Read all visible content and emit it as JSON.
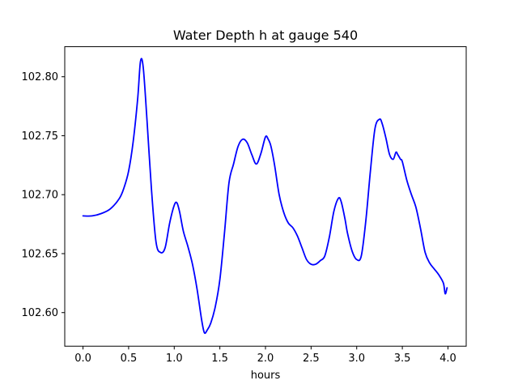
{
  "chart_data": {
    "type": "line",
    "title": "Water Depth h at gauge 540",
    "xlabel": "hours",
    "ylabel": "",
    "xlim": [
      -0.2,
      4.2
    ],
    "ylim": [
      102.5715,
      102.8255
    ],
    "xticks": [
      0.0,
      0.5,
      1.0,
      1.5,
      2.0,
      2.5,
      3.0,
      3.5,
      4.0
    ],
    "xtick_labels": [
      "0.0",
      "0.5",
      "1.0",
      "1.5",
      "2.0",
      "2.5",
      "3.0",
      "3.5",
      "4.0"
    ],
    "yticks": [
      102.6,
      102.65,
      102.7,
      102.75,
      102.8
    ],
    "ytick_labels": [
      "102.60",
      "102.65",
      "102.70",
      "102.75",
      "102.80"
    ],
    "grid": false,
    "series": [
      {
        "color": "#0000ff",
        "x": [
          0.0,
          0.1,
          0.2,
          0.3,
          0.4,
          0.45,
          0.5,
          0.55,
          0.6,
          0.63,
          0.66,
          0.7,
          0.75,
          0.8,
          0.85,
          0.9,
          0.95,
          1.0,
          1.03,
          1.06,
          1.1,
          1.15,
          1.2,
          1.25,
          1.3,
          1.33,
          1.36,
          1.4,
          1.45,
          1.5,
          1.55,
          1.6,
          1.65,
          1.7,
          1.75,
          1.8,
          1.85,
          1.9,
          1.95,
          2.0,
          2.03,
          2.06,
          2.1,
          2.15,
          2.2,
          2.25,
          2.3,
          2.35,
          2.4,
          2.45,
          2.5,
          2.55,
          2.6,
          2.65,
          2.7,
          2.75,
          2.8,
          2.83,
          2.87,
          2.9,
          2.95,
          3.0,
          3.05,
          3.1,
          3.15,
          3.2,
          3.25,
          3.28,
          3.32,
          3.36,
          3.4,
          3.43,
          3.45,
          3.48,
          3.5,
          3.55,
          3.6,
          3.65,
          3.7,
          3.75,
          3.8,
          3.85,
          3.9,
          3.95,
          3.97,
          3.99
        ],
        "y": [
          102.682,
          102.682,
          102.684,
          102.688,
          102.697,
          102.706,
          102.72,
          102.745,
          102.782,
          102.813,
          102.808,
          102.765,
          102.705,
          102.66,
          102.651,
          102.655,
          102.676,
          102.691,
          102.693,
          102.685,
          102.669,
          102.656,
          102.641,
          102.62,
          102.594,
          102.583,
          102.585,
          102.591,
          102.605,
          102.628,
          102.667,
          102.71,
          102.726,
          102.741,
          102.747,
          102.744,
          102.734,
          102.726,
          102.735,
          102.749,
          102.747,
          102.741,
          102.725,
          102.7,
          102.685,
          102.676,
          102.672,
          102.665,
          102.655,
          102.645,
          102.641,
          102.641,
          102.644,
          102.648,
          102.664,
          102.686,
          102.697,
          102.694,
          102.68,
          102.667,
          102.652,
          102.645,
          102.648,
          102.678,
          102.72,
          102.756,
          102.764,
          102.76,
          102.748,
          102.734,
          102.73,
          102.736,
          102.734,
          102.73,
          102.728,
          102.712,
          102.7,
          102.689,
          102.671,
          102.651,
          102.642,
          102.637,
          102.632,
          102.625,
          102.616,
          102.621
        ]
      }
    ]
  }
}
